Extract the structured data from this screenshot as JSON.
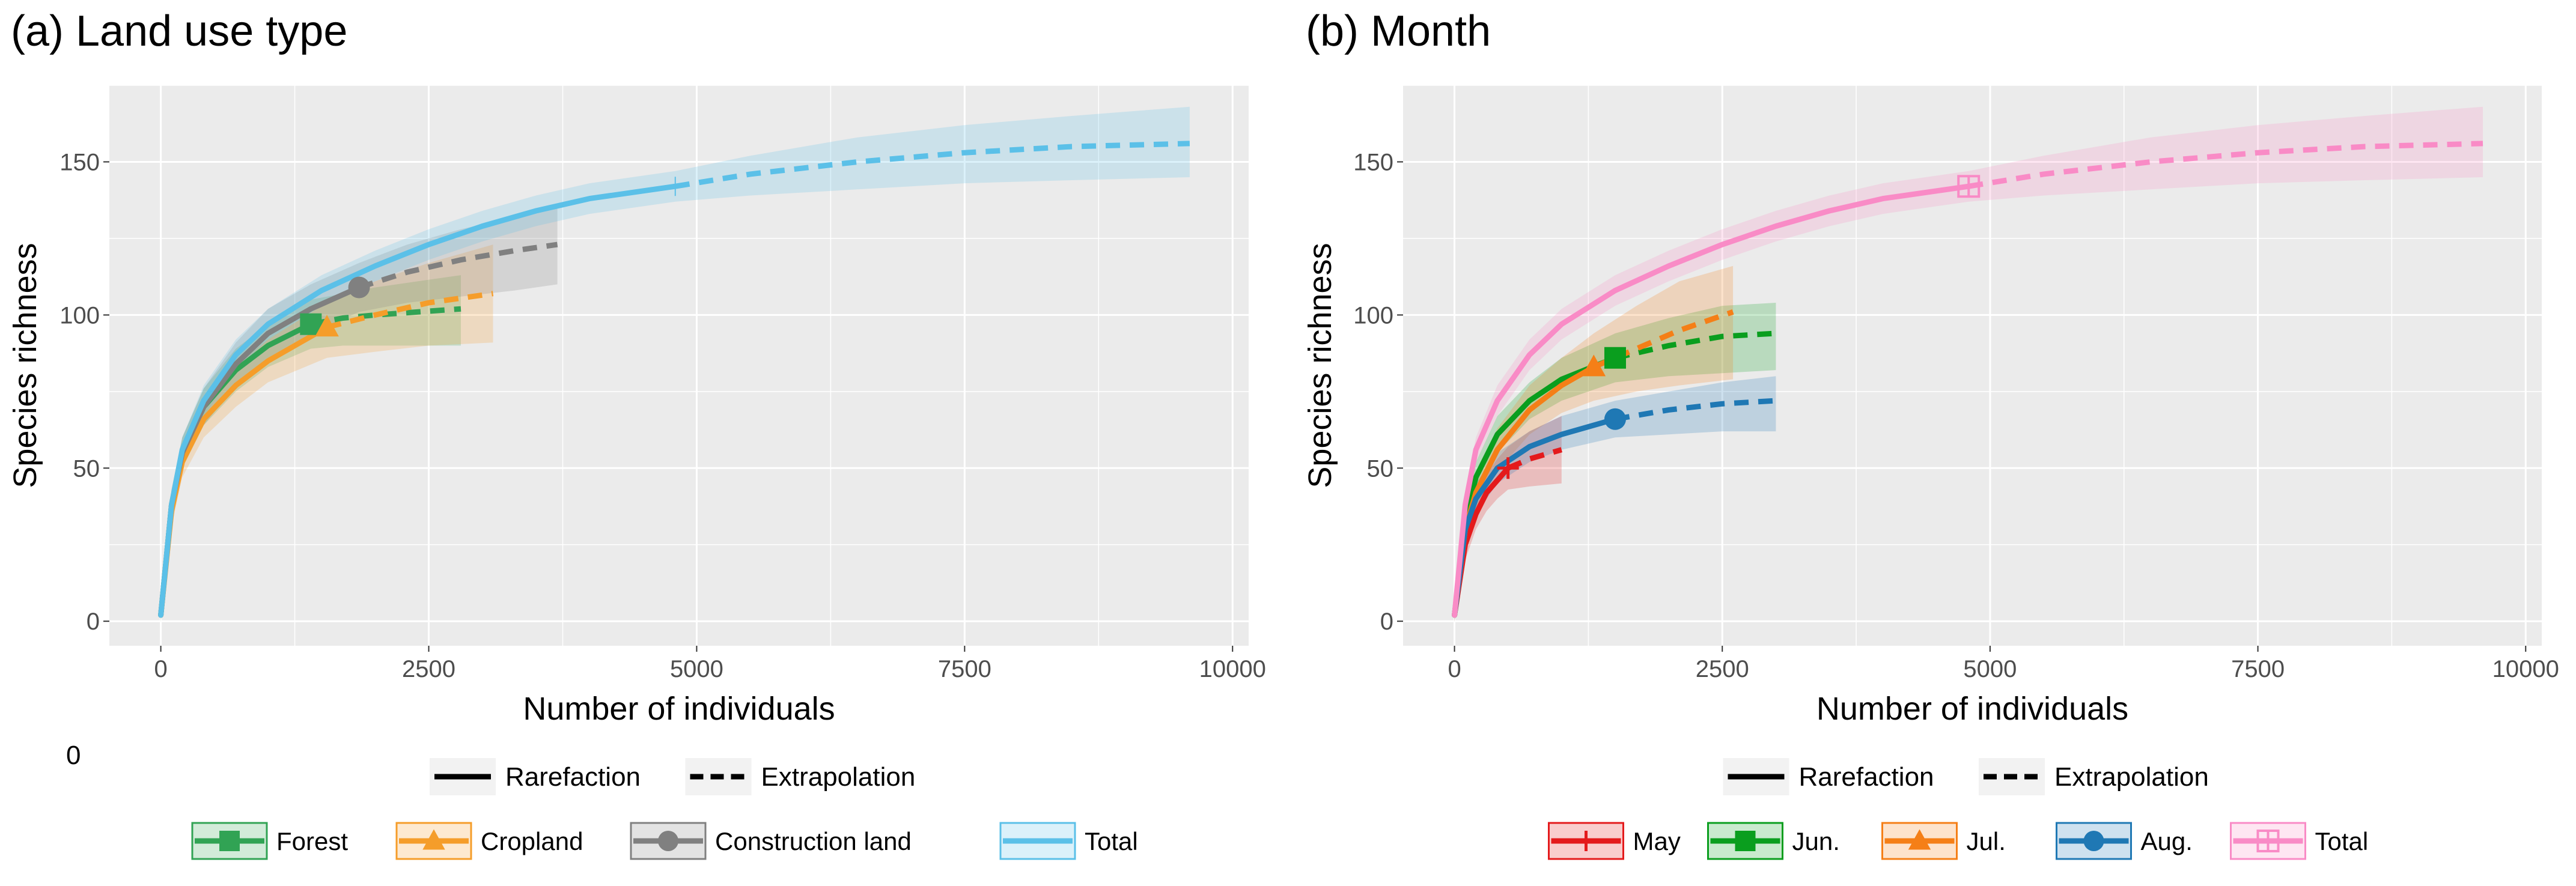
{
  "figure": {
    "stray_label": "0",
    "colors": {
      "panel_bg": "#EBEBEB",
      "grid": "#FFFFFF",
      "text": "#000000",
      "axis_text": "#4D4D4D",
      "key_bg": "#F2F2F2"
    }
  },
  "chart_data": [
    {
      "type": "line",
      "title": "(a) Land use type",
      "xlabel": "Number of individuals",
      "ylabel": "Species richness",
      "xlim": [
        -480,
        10150
      ],
      "ylim": [
        -8,
        175
      ],
      "xticks": [
        0,
        2500,
        5000,
        7500,
        10000
      ],
      "xtick_labels": [
        "0",
        "2500",
        "5000",
        "7500",
        "10000"
      ],
      "yticks": [
        0,
        50,
        100,
        150
      ],
      "ytick_labels": [
        "0",
        "50",
        "100",
        "150"
      ],
      "linetype_legend": [
        "Rarefaction",
        "Extrapolation"
      ],
      "series": [
        {
          "name": "Forest",
          "color": "#31A354",
          "marker": "square",
          "ref_x": 1400,
          "ref_y": 97,
          "rare_x": [
            0,
            100,
            200,
            400,
            700,
            1000,
            1400
          ],
          "rare_y": [
            2,
            38,
            55,
            70,
            82,
            90,
            97
          ],
          "extra_x": [
            1400,
            1700,
            2000,
            2400,
            2800
          ],
          "extra_y": [
            97,
            99,
            100,
            101,
            102
          ],
          "ci_x": [
            0,
            100,
            200,
            400,
            700,
            1000,
            1400,
            1700,
            2000,
            2400,
            2800
          ],
          "ci_lo": [
            0,
            33,
            50,
            64,
            75,
            83,
            89,
            90,
            90,
            90,
            90
          ],
          "ci_hi": [
            4,
            43,
            60,
            76,
            89,
            97,
            105,
            107,
            109,
            111,
            113
          ]
        },
        {
          "name": "Cropland",
          "color": "#F59D2A",
          "marker": "triangle",
          "ref_x": 1550,
          "ref_y": 96,
          "rare_x": [
            0,
            100,
            200,
            400,
            700,
            1000,
            1550
          ],
          "rare_y": [
            2,
            36,
            52,
            66,
            77,
            85,
            96
          ],
          "extra_x": [
            1550,
            2000,
            2500,
            3100
          ],
          "extra_y": [
            96,
            100,
            104,
            107
          ],
          "ci_x": [
            0,
            100,
            200,
            400,
            700,
            1000,
            1550,
            2000,
            2500,
            3100
          ],
          "ci_lo": [
            0,
            31,
            47,
            60,
            70,
            78,
            86,
            88,
            90,
            91
          ],
          "ci_hi": [
            4,
            41,
            57,
            72,
            84,
            92,
            104,
            111,
            117,
            123
          ]
        },
        {
          "name": "Construction land",
          "color": "#808080",
          "marker": "circle",
          "ref_x": 1850,
          "ref_y": 109,
          "rare_x": [
            0,
            100,
            200,
            400,
            700,
            1000,
            1400,
            1850
          ],
          "rare_y": [
            2,
            38,
            55,
            70,
            84,
            94,
            102,
            109
          ],
          "extra_x": [
            1850,
            2300,
            2800,
            3300,
            3700
          ],
          "extra_y": [
            109,
            114,
            118,
            121,
            123
          ],
          "ci_x": [
            0,
            100,
            200,
            400,
            700,
            1000,
            1400,
            1850,
            2300,
            2800,
            3300,
            3700
          ],
          "ci_lo": [
            0,
            33,
            50,
            64,
            77,
            86,
            94,
            101,
            104,
            106,
            108,
            110
          ],
          "ci_hi": [
            4,
            43,
            60,
            76,
            91,
            102,
            110,
            117,
            123,
            128,
            132,
            136
          ]
        },
        {
          "name": "Total",
          "color": "#5BC0E8",
          "marker": "none",
          "ref_x": 4800,
          "ref_y": 142,
          "rare_x": [
            0,
            100,
            200,
            400,
            700,
            1000,
            1500,
            2000,
            2500,
            3000,
            3500,
            4000,
            4800
          ],
          "rare_y": [
            2,
            38,
            56,
            72,
            87,
            97,
            108,
            116,
            123,
            129,
            134,
            138,
            142
          ],
          "extra_x": [
            4800,
            5500,
            6500,
            7500,
            8500,
            9600
          ],
          "extra_y": [
            142,
            146,
            150,
            153,
            155,
            156
          ],
          "ci_x": [
            0,
            100,
            200,
            400,
            700,
            1000,
            1500,
            2000,
            2500,
            3000,
            3500,
            4000,
            4800,
            5500,
            6500,
            7500,
            8500,
            9600
          ],
          "ci_lo": [
            0,
            34,
            52,
            67,
            82,
            92,
            103,
            111,
            118,
            124,
            129,
            133,
            137,
            139,
            141,
            143,
            144,
            145
          ],
          "ci_hi": [
            4,
            42,
            60,
            77,
            92,
            102,
            113,
            121,
            128,
            134,
            139,
            143,
            147,
            152,
            158,
            162,
            165,
            168
          ]
        }
      ]
    },
    {
      "type": "line",
      "title": "(b) Month",
      "xlabel": "Number of individuals",
      "ylabel": "Species richness",
      "xlim": [
        -480,
        10150
      ],
      "ylim": [
        -8,
        175
      ],
      "xticks": [
        0,
        2500,
        5000,
        7500,
        10000
      ],
      "xtick_labels": [
        "0",
        "2500",
        "5000",
        "7500",
        "10000"
      ],
      "yticks": [
        0,
        50,
        100,
        150
      ],
      "ytick_labels": [
        "0",
        "50",
        "100",
        "150"
      ],
      "linetype_legend": [
        "Rarefaction",
        "Extrapolation"
      ],
      "series": [
        {
          "name": "May",
          "color": "#E41A1C",
          "marker": "cross",
          "ref_x": 500,
          "ref_y": 50,
          "rare_x": [
            0,
            100,
            200,
            300,
            400,
            500
          ],
          "rare_y": [
            2,
            25,
            35,
            42,
            46,
            50
          ],
          "extra_x": [
            500,
            700,
            1000
          ],
          "extra_y": [
            50,
            53,
            56
          ],
          "ci_x": [
            0,
            100,
            200,
            300,
            400,
            500,
            700,
            1000
          ],
          "ci_lo": [
            0,
            20,
            30,
            36,
            40,
            43,
            44,
            45
          ],
          "ci_hi": [
            4,
            30,
            40,
            48,
            53,
            57,
            62,
            67
          ]
        },
        {
          "name": "Jun.",
          "color": "#0A9E1E",
          "marker": "square",
          "ref_x": 1500,
          "ref_y": 86,
          "rare_x": [
            0,
            100,
            200,
            400,
            700,
            1000,
            1500
          ],
          "rare_y": [
            2,
            33,
            47,
            61,
            72,
            79,
            86
          ],
          "extra_x": [
            1500,
            2000,
            2500,
            3000
          ],
          "extra_y": [
            86,
            90,
            93,
            94
          ],
          "ci_x": [
            0,
            100,
            200,
            400,
            700,
            1000,
            1500,
            2000,
            2500,
            3000
          ],
          "ci_lo": [
            0,
            28,
            42,
            55,
            66,
            72,
            78,
            80,
            81,
            82
          ],
          "ci_hi": [
            4,
            38,
            52,
            67,
            78,
            86,
            94,
            99,
            103,
            104
          ]
        },
        {
          "name": "Jul.",
          "color": "#F57F17",
          "marker": "triangle",
          "ref_x": 1300,
          "ref_y": 83,
          "rare_x": [
            0,
            100,
            200,
            400,
            700,
            1000,
            1300
          ],
          "rare_y": [
            2,
            30,
            42,
            56,
            69,
            77,
            83
          ],
          "extra_x": [
            1300,
            1700,
            2100,
            2600
          ],
          "extra_y": [
            83,
            89,
            95,
            101
          ],
          "ci_x": [
            0,
            100,
            200,
            400,
            700,
            1000,
            1300,
            1700,
            2100,
            2600
          ],
          "ci_lo": [
            0,
            25,
            36,
            49,
            61,
            68,
            72,
            75,
            77,
            79
          ],
          "ci_hi": [
            4,
            35,
            48,
            63,
            77,
            86,
            94,
            103,
            111,
            116
          ]
        },
        {
          "name": "Aug.",
          "color": "#1F78B4",
          "marker": "circle",
          "ref_x": 1500,
          "ref_y": 66,
          "rare_x": [
            0,
            100,
            200,
            400,
            700,
            1000,
            1500
          ],
          "rare_y": [
            2,
            30,
            40,
            50,
            57,
            61,
            66
          ],
          "extra_x": [
            1500,
            2000,
            2500,
            3000
          ],
          "extra_y": [
            66,
            69,
            71,
            72
          ],
          "ci_x": [
            0,
            100,
            200,
            400,
            700,
            1000,
            1500,
            2000,
            2500,
            3000
          ],
          "ci_lo": [
            0,
            26,
            35,
            45,
            52,
            56,
            60,
            61,
            62,
            62
          ],
          "ci_hi": [
            4,
            34,
            45,
            55,
            62,
            67,
            72,
            75,
            78,
            80
          ]
        },
        {
          "name": "Total",
          "color": "#F98BC6",
          "marker": "boxplus",
          "ref_x": 4800,
          "ref_y": 142,
          "rare_x": [
            0,
            100,
            200,
            400,
            700,
            1000,
            1500,
            2000,
            2500,
            3000,
            3500,
            4000,
            4800
          ],
          "rare_y": [
            2,
            38,
            56,
            72,
            87,
            97,
            108,
            116,
            123,
            129,
            134,
            138,
            142
          ],
          "extra_x": [
            4800,
            5500,
            6500,
            7500,
            8500,
            9600
          ],
          "extra_y": [
            142,
            146,
            150,
            153,
            155,
            156
          ],
          "ci_x": [
            0,
            100,
            200,
            400,
            700,
            1000,
            1500,
            2000,
            2500,
            3000,
            3500,
            4000,
            4800,
            5500,
            6500,
            7500,
            8500,
            9600
          ],
          "ci_lo": [
            0,
            34,
            52,
            67,
            82,
            92,
            103,
            111,
            118,
            124,
            129,
            133,
            137,
            139,
            141,
            143,
            144,
            145
          ],
          "ci_hi": [
            4,
            42,
            60,
            77,
            92,
            102,
            113,
            121,
            128,
            134,
            139,
            143,
            147,
            152,
            158,
            162,
            165,
            168
          ]
        }
      ]
    }
  ]
}
